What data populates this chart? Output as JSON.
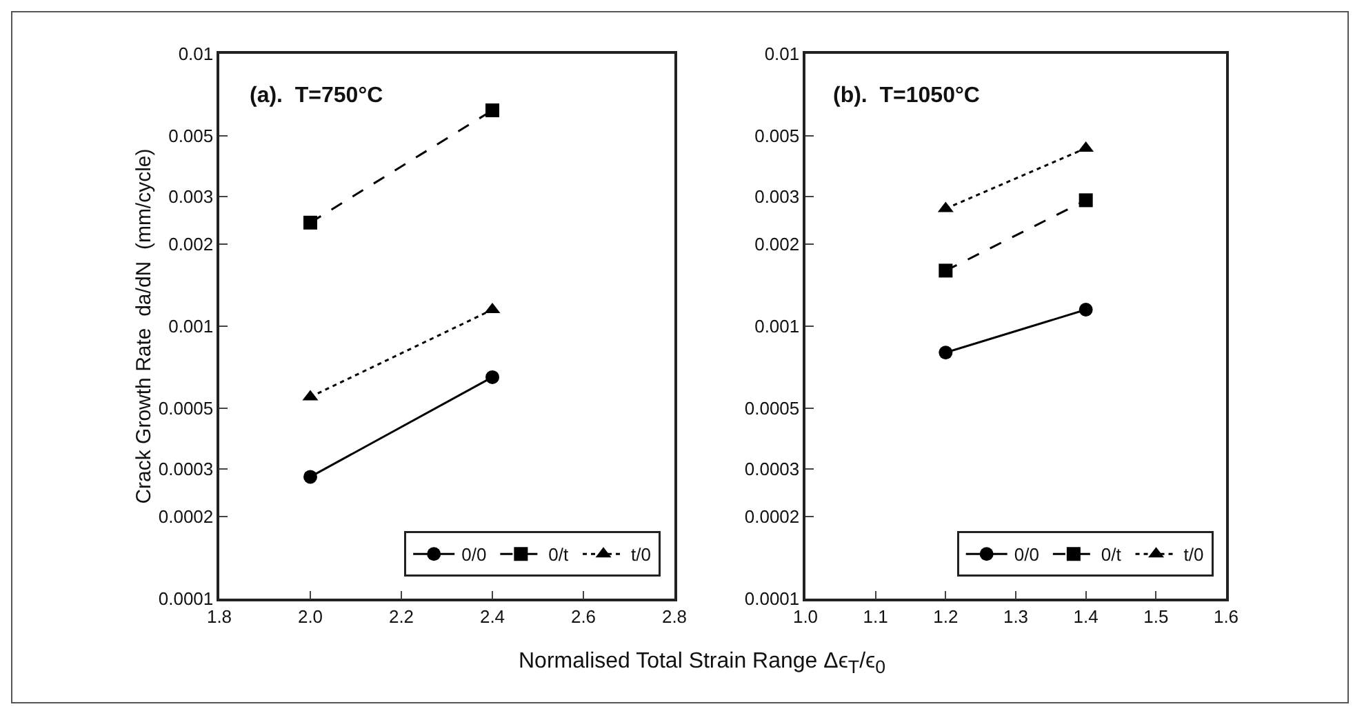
{
  "chart_data": [
    {
      "type": "line",
      "title": "(a).  T=750°C",
      "xlabel": "Normalised Total Strain Range Δϵ$_{T}$/ϵ$_{0}$",
      "ylabel": "Crack Growth Rate  da/dN  (mm/cycle)",
      "x": [
        2.0,
        2.4
      ],
      "log": "y",
      "xlim": [
        1.8,
        2.8
      ],
      "xticks": [
        {
          "value": 1.8,
          "label": "1.8"
        },
        {
          "value": 2.0,
          "label": "2.0"
        },
        {
          "value": 2.2,
          "label": "2.2"
        },
        {
          "value": 2.4,
          "label": "2.4"
        },
        {
          "value": 2.6,
          "label": "2.6"
        },
        {
          "value": 2.8,
          "label": "2.8"
        }
      ],
      "ylim": [
        0.0001,
        0.01
      ],
      "yticks": [
        0.0001,
        0.0002,
        0.0003,
        0.0005,
        0.001,
        0.002,
        0.003,
        0.005,
        0.01
      ],
      "grid": false,
      "legend": "bottom right",
      "series": [
        {
          "name": "0/0",
          "color": "#000000",
          "values": [
            0.00028,
            0.00065
          ],
          "marker": "circle",
          "line_style": "solid"
        },
        {
          "name": "0/t",
          "color": "#000000",
          "values": [
            0.0024,
            0.0062
          ],
          "marker": "square",
          "line_style": "dashed"
        },
        {
          "name": "t/0",
          "color": "#000000",
          "values": [
            0.00055,
            0.00115
          ],
          "marker": "triangle",
          "line_style": "dotted"
        }
      ]
    },
    {
      "type": "line",
      "title": "(b).  T=1050°C",
      "x": [
        1.2,
        1.4
      ],
      "log": "y",
      "xlim": [
        1.0,
        1.6
      ],
      "xticks": [
        {
          "value": 1.0,
          "label": "1.0"
        },
        {
          "value": 1.1,
          "label": "1.1"
        },
        {
          "value": 1.2,
          "label": "1.2"
        },
        {
          "value": 1.3,
          "label": "1.3"
        },
        {
          "value": 1.4,
          "label": "1.4"
        },
        {
          "value": 1.5,
          "label": "1.5"
        },
        {
          "value": 1.6,
          "label": "1.6"
        }
      ],
      "ylim": [
        0.0001,
        0.01
      ],
      "yticks": [
        0.0001,
        0.0002,
        0.0003,
        0.0005,
        0.001,
        0.002,
        0.003,
        0.005,
        0.01
      ],
      "grid": false,
      "legend": "bottom right",
      "series": [
        {
          "name": "0/0",
          "color": "#000000",
          "values": [
            0.0008,
            0.00115
          ],
          "marker": "circle",
          "line_style": "solid"
        },
        {
          "name": "0/t",
          "color": "#000000",
          "values": [
            0.0016,
            0.0029
          ],
          "marker": "square",
          "line_style": "dashed"
        },
        {
          "name": "t/0",
          "color": "#000000",
          "values": [
            0.0027,
            0.0045
          ],
          "marker": "triangle",
          "line_style": "dotted"
        }
      ]
    }
  ]
}
